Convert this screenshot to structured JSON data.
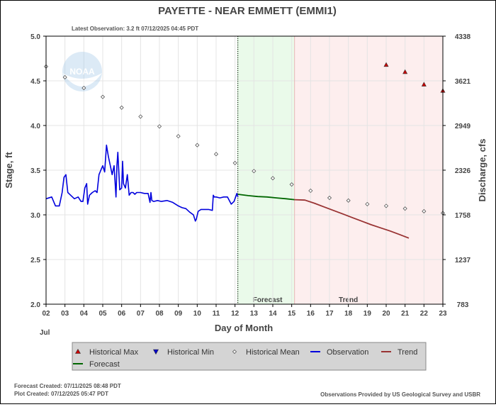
{
  "header": {
    "title": "PAYETTE - NEAR EMMETT  (EMMI1)",
    "latest_observation": "Latest Observation: 3.2 ft 07/12/2025 04:45 PDT"
  },
  "footer": {
    "forecast_created": "Forecast Created: 07/11/2025 08:48 PDT",
    "plot_created": "Plot Created: 07/12/2025 05:47 PDT",
    "credit": "Observations Provided by US Geological Survey and USBR"
  },
  "chart_data": {
    "type": "line",
    "xlabel": "Day of Month",
    "x_sublabel": "Jul",
    "ylabel": "Stage, ft",
    "y2label": "Discharge, cfs",
    "xlim": [
      2,
      23
    ],
    "ylim": [
      2.0,
      5.0
    ],
    "x_ticks": [
      "02",
      "03",
      "04",
      "05",
      "06",
      "07",
      "08",
      "09",
      "10",
      "11",
      "12",
      "13",
      "14",
      "15",
      "16",
      "17",
      "18",
      "19",
      "20",
      "21",
      "22",
      "23"
    ],
    "y_ticks": [
      "2.0",
      "2.5",
      "3.0",
      "3.5",
      "4.0",
      "4.5",
      "5.0"
    ],
    "y2_ticks": [
      {
        "stage": 2.0,
        "label": "783"
      },
      {
        "stage": 2.5,
        "label": "1237"
      },
      {
        "stage": 3.0,
        "label": "1758"
      },
      {
        "stage": 3.5,
        "label": "2326"
      },
      {
        "stage": 4.0,
        "label": "2949"
      },
      {
        "stage": 4.5,
        "label": "3621"
      },
      {
        "stage": 5.0,
        "label": "4338"
      }
    ],
    "grid": true,
    "forecast_region": {
      "start": 12.15,
      "end": 15.15,
      "label": "Forecast",
      "color": "#eafaea"
    },
    "trend_region": {
      "start": 15.15,
      "end": 23,
      "label": "Trend",
      "color": "#fdeeee"
    },
    "current_time": 12.15,
    "series": [
      {
        "name": "Observation",
        "color": "#0000dd",
        "style": "line",
        "x": [
          2.0,
          2.3,
          2.5,
          2.7,
          2.85,
          2.95,
          3.05,
          3.15,
          3.3,
          3.5,
          3.7,
          3.85,
          3.95,
          4.05,
          4.15,
          4.2,
          4.3,
          4.45,
          4.6,
          4.7,
          4.8,
          4.9,
          5.0,
          5.1,
          5.2,
          5.3,
          5.4,
          5.5,
          5.6,
          5.7,
          5.75,
          5.8,
          5.9,
          6.0,
          6.05,
          6.1,
          6.2,
          6.3,
          6.4,
          6.5,
          6.6,
          6.7,
          6.8,
          7.0,
          7.2,
          7.4,
          7.5,
          7.55,
          7.6,
          7.7,
          7.9,
          8.1,
          8.4,
          8.7,
          9.0,
          9.2,
          9.4,
          9.6,
          9.8,
          9.9,
          9.95,
          10.05,
          10.2,
          10.4,
          10.6,
          10.8,
          10.85,
          10.9,
          11.0,
          11.2,
          11.4,
          11.6,
          11.8,
          11.95,
          12.1,
          12.15
        ],
        "y": [
          3.18,
          3.2,
          3.1,
          3.1,
          3.25,
          3.42,
          3.45,
          3.25,
          3.22,
          3.18,
          3.2,
          3.15,
          3.15,
          3.3,
          3.35,
          3.12,
          3.22,
          3.25,
          3.27,
          3.25,
          3.45,
          3.5,
          3.55,
          3.48,
          3.78,
          3.65,
          3.55,
          3.45,
          3.55,
          3.2,
          3.55,
          3.7,
          3.28,
          3.3,
          3.6,
          3.35,
          3.3,
          3.45,
          3.22,
          3.25,
          3.25,
          3.23,
          3.25,
          3.25,
          3.24,
          3.24,
          3.14,
          3.25,
          3.16,
          3.15,
          3.16,
          3.15,
          3.16,
          3.14,
          3.1,
          3.08,
          3.07,
          3.03,
          3.0,
          2.93,
          2.95,
          3.04,
          3.06,
          3.06,
          3.06,
          3.05,
          3.22,
          3.2,
          3.2,
          3.19,
          3.2,
          3.2,
          3.12,
          3.15,
          3.24,
          3.2
        ]
      },
      {
        "name": "Forecast",
        "color": "#006600",
        "style": "line",
        "x": [
          12.15,
          12.7,
          13.2,
          13.7,
          14.2,
          14.7,
          15.15
        ],
        "y": [
          3.23,
          3.215,
          3.205,
          3.2,
          3.19,
          3.18,
          3.17
        ]
      },
      {
        "name": "Trend",
        "color": "#993333",
        "style": "line",
        "x": [
          15.15,
          15.7,
          16.2,
          16.7,
          17.2,
          17.7,
          18.2,
          18.7,
          19.2,
          19.7,
          20.2,
          20.7,
          21.2
        ],
        "y": [
          3.17,
          3.165,
          3.13,
          3.09,
          3.05,
          3.01,
          2.97,
          2.93,
          2.89,
          2.855,
          2.82,
          2.78,
          2.74
        ]
      },
      {
        "name": "Historical Mean",
        "color": "#555555",
        "style": "diamond",
        "x": [
          2,
          3,
          4,
          5,
          6,
          7,
          8,
          9,
          10,
          11,
          12,
          13,
          14,
          15,
          16,
          17,
          18,
          19,
          20,
          21,
          22,
          23
        ],
        "y": [
          4.66,
          4.54,
          4.42,
          4.32,
          4.2,
          4.1,
          3.99,
          3.88,
          3.78,
          3.68,
          3.58,
          3.49,
          3.41,
          3.34,
          3.27,
          3.19,
          3.16,
          3.12,
          3.1,
          3.07,
          3.04,
          3.02
        ]
      },
      {
        "name": "Historical Max",
        "color": "#cc0000",
        "style": "triangle-up",
        "x": [
          20,
          21,
          22,
          23
        ],
        "y": [
          4.68,
          4.6,
          4.46,
          4.39
        ]
      },
      {
        "name": "Historical Min",
        "color": "#0000cc",
        "style": "triangle-down",
        "x": [],
        "y": []
      }
    ],
    "legend": {
      "placement": "bottom-center",
      "items": [
        {
          "label": "Historical Max",
          "color": "#cc0000",
          "symbol": "triangle-up"
        },
        {
          "label": "Historical Min",
          "color": "#0000cc",
          "symbol": "triangle-down"
        },
        {
          "label": "Historical Mean",
          "color": "#555555",
          "symbol": "diamond"
        },
        {
          "label": "Observation",
          "color": "#0000dd",
          "symbol": "line"
        },
        {
          "label": "Trend",
          "color": "#993333",
          "symbol": "line"
        },
        {
          "label": "Forecast",
          "color": "#006600",
          "symbol": "line"
        }
      ]
    }
  }
}
